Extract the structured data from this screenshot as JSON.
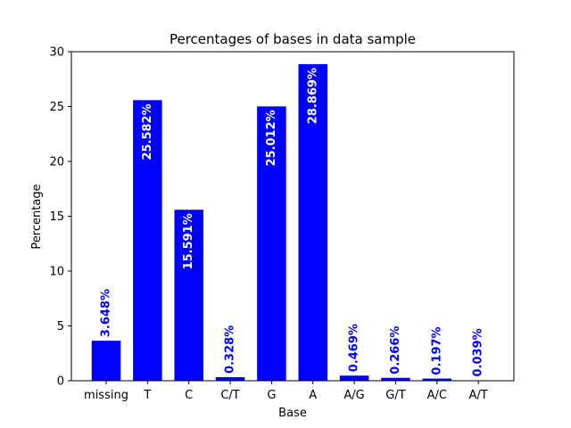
{
  "chart_data": {
    "type": "bar",
    "title": "Percentages of bases in data sample",
    "xlabel": "Base",
    "ylabel": "Percentage",
    "categories": [
      "missing",
      "T",
      "C",
      "C/T",
      "G",
      "A",
      "A/G",
      "G/T",
      "A/C",
      "A/T"
    ],
    "values": [
      3.648,
      25.582,
      15.591,
      0.328,
      25.012,
      28.869,
      0.469,
      0.266,
      0.197,
      0.039
    ],
    "labels": [
      "3.648%",
      "25.582%",
      "15.591%",
      "0.328%",
      "25.012%",
      "28.869%",
      "0.469%",
      "0.266%",
      "0.197%",
      "0.039%"
    ],
    "ylim": [
      0,
      30
    ],
    "yticks": [
      0,
      5,
      10,
      15,
      20,
      25,
      30
    ],
    "grid": false,
    "colors": {
      "bar": "#0000ff",
      "label_inside": "#ffffff",
      "label_outside": "#0000ff"
    }
  }
}
